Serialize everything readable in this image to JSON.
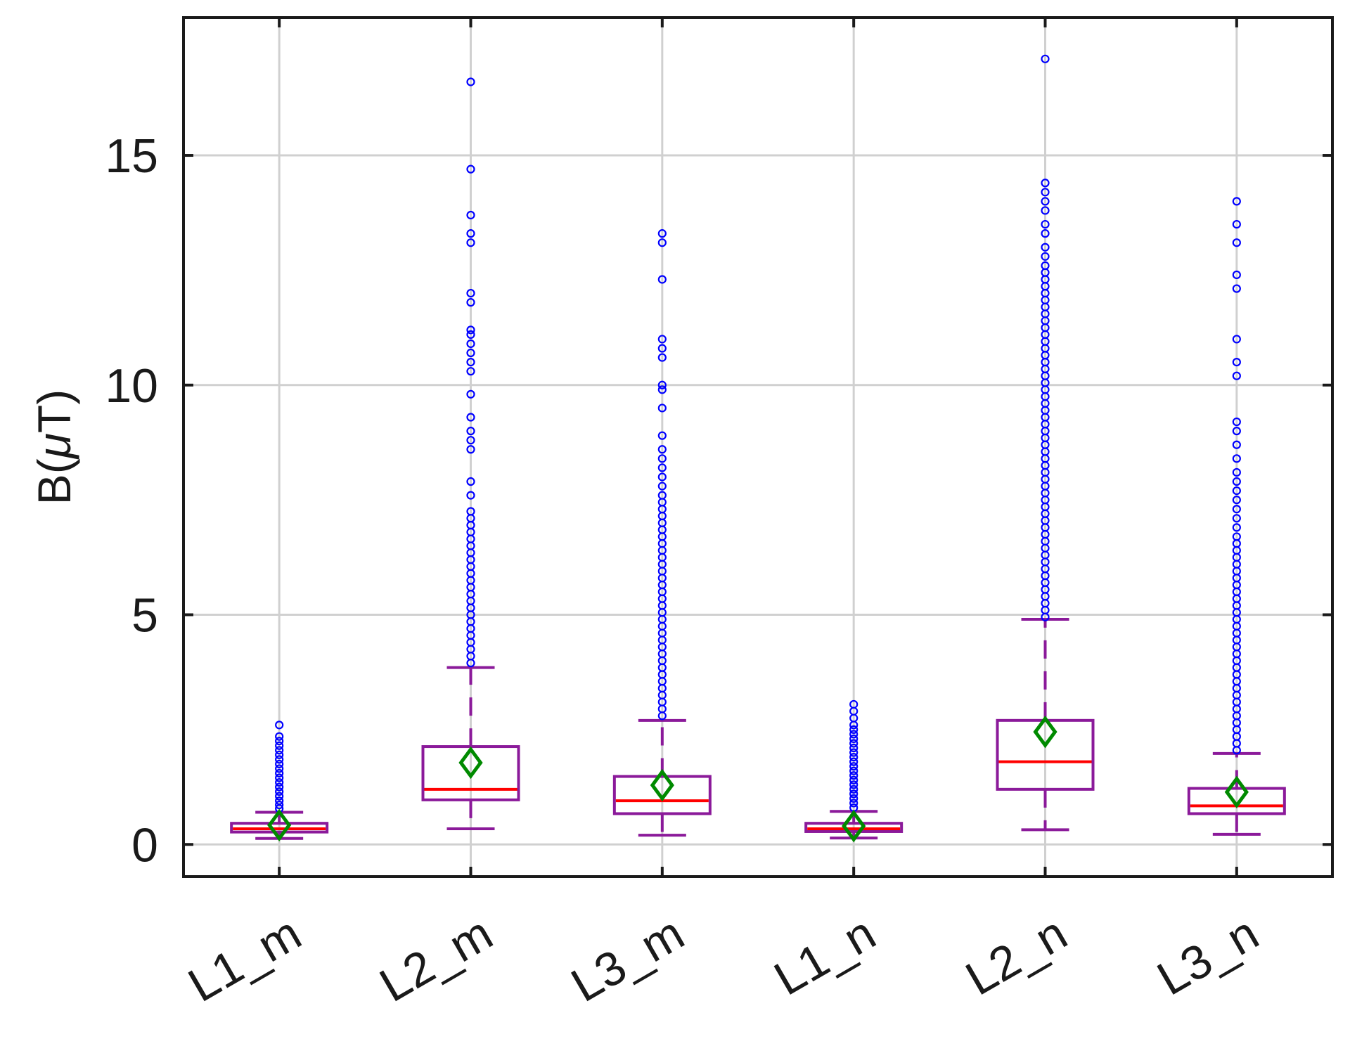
{
  "chart_data": {
    "type": "box",
    "ylabel_prefix": "B(",
    "ylabel_symbol": "μ",
    "ylabel_suffix": "T)",
    "ylim": [
      -0.7,
      18.0
    ],
    "yticks": [
      0,
      5,
      10,
      15
    ],
    "ytick_labels": [
      "0",
      "5",
      "10",
      "15"
    ],
    "grid": true,
    "categories": [
      "L1_m",
      "L2_m",
      "L3_m",
      "L1_n",
      "L2_n",
      "L3_n"
    ],
    "colors": {
      "box": "#8b1a9a",
      "median": "#ff0000",
      "mean_marker": "#008a00",
      "outlier": "#0000ff",
      "grid": "#d0d0d0",
      "axis": "#1a1a1a"
    },
    "boxes": [
      {
        "category": "L1_m",
        "whisker_low": 0.13,
        "q1": 0.27,
        "median": 0.34,
        "q3": 0.46,
        "whisker_high": 0.7,
        "mean": 0.42,
        "outliers": [
          0.78,
          0.86,
          0.95,
          1.05,
          1.15,
          1.25,
          1.35,
          1.45,
          1.55,
          1.65,
          1.75,
          1.85,
          1.95,
          2.05,
          2.15,
          2.25,
          2.35,
          2.6
        ]
      },
      {
        "category": "L2_m",
        "whisker_low": 0.34,
        "q1": 0.97,
        "median": 1.2,
        "q3": 2.13,
        "whisker_high": 3.85,
        "mean": 1.78,
        "outliers": [
          3.95,
          4.1,
          4.25,
          4.4,
          4.55,
          4.7,
          4.85,
          5.0,
          5.15,
          5.3,
          5.45,
          5.6,
          5.75,
          5.9,
          6.05,
          6.2,
          6.35,
          6.5,
          6.65,
          6.8,
          6.95,
          7.1,
          7.25,
          7.6,
          7.9,
          8.6,
          8.8,
          9.0,
          9.3,
          9.8,
          10.3,
          10.5,
          10.7,
          10.9,
          11.1,
          11.2,
          11.8,
          12.0,
          13.1,
          13.3,
          13.7,
          14.7,
          16.6
        ]
      },
      {
        "category": "L3_m",
        "whisker_low": 0.2,
        "q1": 0.67,
        "median": 0.95,
        "q3": 1.48,
        "whisker_high": 2.7,
        "mean": 1.29,
        "outliers": [
          2.8,
          2.95,
          3.1,
          3.25,
          3.4,
          3.55,
          3.7,
          3.85,
          4.0,
          4.15,
          4.3,
          4.45,
          4.6,
          4.75,
          4.9,
          5.05,
          5.2,
          5.35,
          5.5,
          5.65,
          5.8,
          5.95,
          6.1,
          6.25,
          6.4,
          6.55,
          6.7,
          6.85,
          7.0,
          7.15,
          7.3,
          7.45,
          7.6,
          7.8,
          8.0,
          8.2,
          8.4,
          8.6,
          8.9,
          9.5,
          9.9,
          10.0,
          10.6,
          10.8,
          11.0,
          12.3,
          13.1,
          13.3
        ]
      },
      {
        "category": "L1_n",
        "whisker_low": 0.14,
        "q1": 0.28,
        "median": 0.34,
        "q3": 0.46,
        "whisker_high": 0.72,
        "mean": 0.4,
        "outliers": [
          0.8,
          0.9,
          1.0,
          1.1,
          1.2,
          1.3,
          1.4,
          1.5,
          1.6,
          1.7,
          1.8,
          1.9,
          2.0,
          2.1,
          2.2,
          2.3,
          2.4,
          2.5,
          2.6,
          2.75,
          2.9,
          3.05
        ]
      },
      {
        "category": "L2_n",
        "whisker_low": 0.32,
        "q1": 1.2,
        "median": 1.8,
        "q3": 2.7,
        "whisker_high": 4.9,
        "mean": 2.45,
        "outliers": [
          4.95,
          5.1,
          5.25,
          5.4,
          5.55,
          5.7,
          5.85,
          6.0,
          6.15,
          6.3,
          6.45,
          6.6,
          6.75,
          6.9,
          7.05,
          7.2,
          7.35,
          7.5,
          7.65,
          7.8,
          7.95,
          8.1,
          8.25,
          8.4,
          8.55,
          8.7,
          8.85,
          9.0,
          9.15,
          9.3,
          9.45,
          9.6,
          9.75,
          9.9,
          10.05,
          10.2,
          10.35,
          10.5,
          10.65,
          10.8,
          10.95,
          11.1,
          11.25,
          11.4,
          11.55,
          11.7,
          11.85,
          12.0,
          12.15,
          12.3,
          12.45,
          12.6,
          12.8,
          13.0,
          13.3,
          13.5,
          13.8,
          14.0,
          14.2,
          14.4,
          17.1
        ]
      },
      {
        "category": "L3_n",
        "whisker_low": 0.22,
        "q1": 0.67,
        "median": 0.84,
        "q3": 1.22,
        "whisker_high": 1.98,
        "mean": 1.14,
        "outliers": [
          2.05,
          2.2,
          2.35,
          2.5,
          2.65,
          2.8,
          2.95,
          3.1,
          3.25,
          3.4,
          3.55,
          3.7,
          3.85,
          4.0,
          4.15,
          4.3,
          4.45,
          4.6,
          4.75,
          4.9,
          5.05,
          5.2,
          5.35,
          5.5,
          5.65,
          5.8,
          5.95,
          6.1,
          6.25,
          6.4,
          6.55,
          6.7,
          6.9,
          7.1,
          7.3,
          7.5,
          7.7,
          7.9,
          8.1,
          8.4,
          8.7,
          9.0,
          9.2,
          10.2,
          10.5,
          11.0,
          12.1,
          12.4,
          13.1,
          13.5,
          14.0
        ]
      }
    ]
  }
}
